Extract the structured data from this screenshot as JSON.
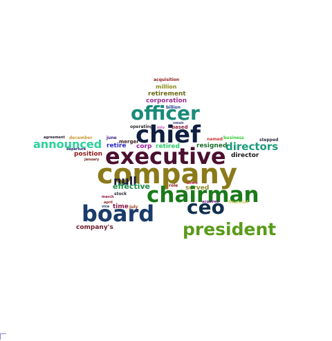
{
  "words": [
    {
      "text": "acquisition",
      "color": "#8b1a1a"
    },
    {
      "text": "million",
      "color": "#8b8b1a"
    },
    {
      "text": "retirement",
      "color": "#6b6b1a"
    },
    {
      "text": "corporation",
      "color": "#9b2f8f"
    },
    {
      "text": "billion",
      "color": "#1a3b8b"
    },
    {
      "text": "officer",
      "color": "#1a8b7a"
    },
    {
      "text": "remain",
      "color": "#1a1a6b"
    },
    {
      "text": "operating",
      "color": "#2a2a2a"
    },
    {
      "text": "info",
      "color": "#cc55cc"
    },
    {
      "text": "based",
      "color": "#8b1a3b"
    },
    {
      "text": "chief",
      "color": "#0f1f3f"
    },
    {
      "text": "agreement",
      "color": "#1a1a2a"
    },
    {
      "text": "december",
      "color": "#cc9933"
    },
    {
      "text": "june",
      "color": "#3b1a8b"
    },
    {
      "text": "named",
      "color": "#cc3333"
    },
    {
      "text": "business",
      "color": "#33cc33"
    },
    {
      "text": "stepped",
      "color": "#2a2a3a"
    },
    {
      "text": "announced",
      "color": "#2ad19a"
    },
    {
      "text": "merger",
      "color": "#3b1a1a"
    },
    {
      "text": "retire",
      "color": "#2a2acc"
    },
    {
      "text": "corp",
      "color": "#9b1a9b"
    },
    {
      "text": "retired",
      "color": "#2acc6b"
    },
    {
      "text": "resigned",
      "color": "#1a6b2a"
    },
    {
      "text": "directors",
      "color": "#1a9b7a"
    },
    {
      "text": "departure",
      "color": "#1a1a6b"
    },
    {
      "text": "position",
      "color": "#8b1a1a"
    },
    {
      "text": "executive",
      "color": "#4b0f2f"
    },
    {
      "text": "director",
      "color": "#1a1a1a"
    },
    {
      "text": "january",
      "color": "#6b1a1a"
    },
    {
      "text": "company",
      "color": "#8b7a1a"
    },
    {
      "text": "null",
      "color": "#1a1a3b"
    },
    {
      "text": "effective",
      "color": "#1a8b4b"
    },
    {
      "text": "role",
      "color": "#8b1a1a"
    },
    {
      "text": "share",
      "color": "#cc3366"
    },
    {
      "text": "served",
      "color": "#8b8b2a"
    },
    {
      "text": "chairman",
      "color": "#1a7a1a"
    },
    {
      "text": "stock",
      "color": "#2a2a3a"
    },
    {
      "text": "march",
      "color": "#8b1a3b"
    },
    {
      "text": "april",
      "color": "#8b1a1a"
    },
    {
      "text": "time",
      "color": "#8b1a4b"
    },
    {
      "text": "vice",
      "color": "#1a3b6b"
    },
    {
      "text": "july",
      "color": "#9b3b1a"
    },
    {
      "text": "ceo",
      "color": "#0f2f4f"
    },
    {
      "text": "acquired",
      "color": "#6b1a8b"
    },
    {
      "text": "financial",
      "color": "#cccc66"
    },
    {
      "text": "board",
      "color": "#1a3b6b"
    },
    {
      "text": "president",
      "color": "#5a9b1a"
    },
    {
      "text": "company's",
      "color": "#6b1a2a"
    }
  ]
}
